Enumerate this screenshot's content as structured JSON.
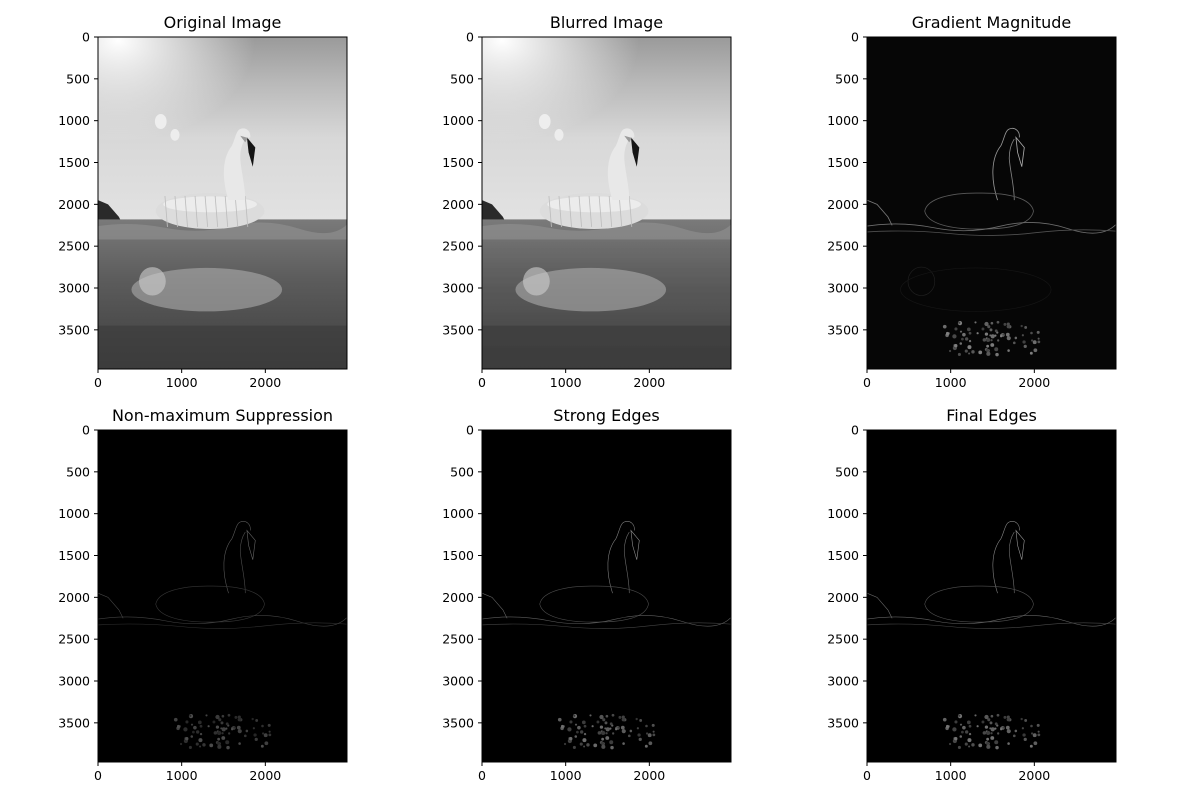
{
  "chart_data": [
    {
      "type": "image",
      "title": "Original Image",
      "image_shape": [
        3968,
        2976
      ],
      "xlim": [
        0,
        2976
      ],
      "ylim": [
        3968,
        0
      ],
      "xticks": [
        0,
        1000,
        2000
      ],
      "yticks": [
        0,
        500,
        1000,
        1500,
        2000,
        2500,
        3000,
        3500
      ],
      "variant": "original",
      "colormap": "gray"
    },
    {
      "type": "image",
      "title": "Blurred Image",
      "image_shape": [
        3968,
        2976
      ],
      "xlim": [
        0,
        2976
      ],
      "ylim": [
        3968,
        0
      ],
      "xticks": [
        0,
        1000,
        2000
      ],
      "yticks": [
        0,
        500,
        1000,
        1500,
        2000,
        2500,
        3000,
        3500
      ],
      "variant": "blurred",
      "colormap": "gray"
    },
    {
      "type": "image",
      "title": "Gradient Magnitude",
      "image_shape": [
        3968,
        2976
      ],
      "xlim": [
        0,
        2976
      ],
      "ylim": [
        3968,
        0
      ],
      "xticks": [
        0,
        1000,
        2000
      ],
      "yticks": [
        0,
        500,
        1000,
        1500,
        2000,
        2500,
        3000,
        3500
      ],
      "variant": "gradient",
      "colormap": "gray"
    },
    {
      "type": "image",
      "title": "Non-maximum Suppression",
      "image_shape": [
        3968,
        2976
      ],
      "xlim": [
        0,
        2976
      ],
      "ylim": [
        3968,
        0
      ],
      "xticks": [
        0,
        1000,
        2000
      ],
      "yticks": [
        0,
        500,
        1000,
        1500,
        2000,
        2500,
        3000,
        3500
      ],
      "variant": "nms",
      "colormap": "gray"
    },
    {
      "type": "image",
      "title": "Strong Edges",
      "image_shape": [
        3968,
        2976
      ],
      "xlim": [
        0,
        2976
      ],
      "ylim": [
        3968,
        0
      ],
      "xticks": [
        0,
        1000,
        2000
      ],
      "yticks": [
        0,
        500,
        1000,
        1500,
        2000,
        2500,
        3000,
        3500
      ],
      "variant": "strong",
      "colormap": "gray"
    },
    {
      "type": "image",
      "title": "Final Edges",
      "image_shape": [
        3968,
        2976
      ],
      "xlim": [
        0,
        2976
      ],
      "ylim": [
        3968,
        0
      ],
      "xticks": [
        0,
        1000,
        2000
      ],
      "yticks": [
        0,
        500,
        1000,
        1500,
        2000,
        2500,
        3000,
        3500
      ],
      "variant": "final",
      "colormap": "gray"
    }
  ]
}
